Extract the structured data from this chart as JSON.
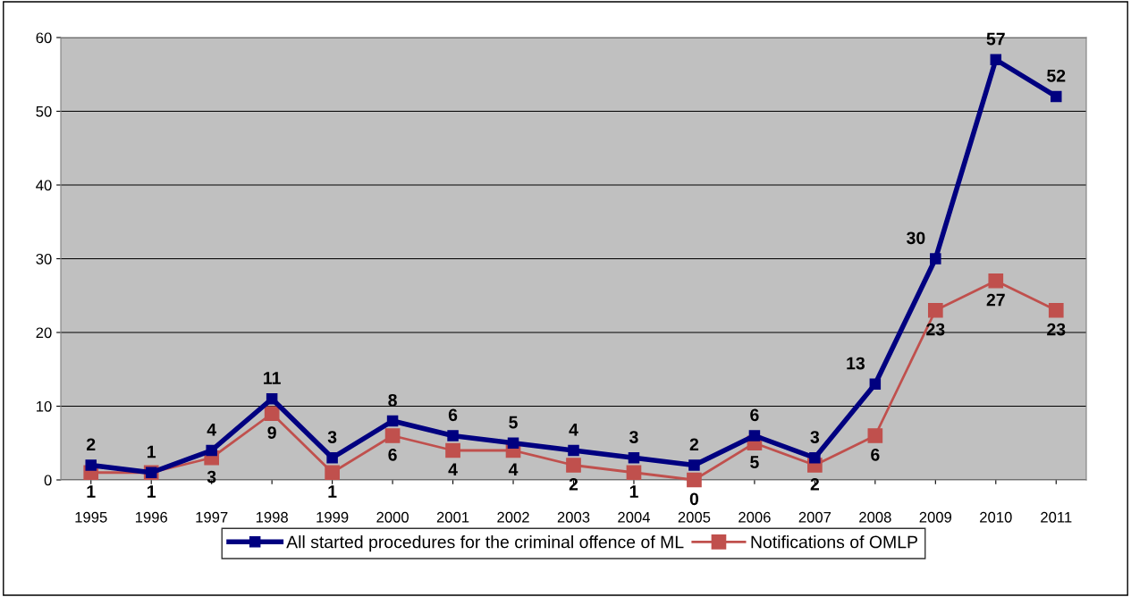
{
  "chart_data": {
    "type": "line",
    "categories": [
      "1995",
      "1996",
      "1997",
      "1998",
      "1999",
      "2000",
      "2001",
      "2002",
      "2003",
      "2004",
      "2005",
      "2006",
      "2007",
      "2008",
      "2009",
      "2010",
      "2011"
    ],
    "series": [
      {
        "name": "All started procedures for the criminal offence of ML",
        "color": "#000080",
        "values": [
          2,
          1,
          4,
          11,
          3,
          8,
          6,
          5,
          4,
          3,
          2,
          6,
          3,
          13,
          30,
          57,
          52
        ]
      },
      {
        "name": "Notifications of OMLP",
        "color": "#c0504d",
        "values": [
          1,
          1,
          3,
          9,
          1,
          6,
          4,
          4,
          2,
          1,
          0,
          5,
          2,
          6,
          23,
          27,
          23
        ]
      }
    ],
    "ylim": [
      0,
      60
    ],
    "yticks": [
      0,
      10,
      20,
      30,
      40,
      50,
      60
    ],
    "grid": "y",
    "legend": "bottom",
    "marker": "square",
    "line_style": "solid",
    "data_labels": true
  }
}
